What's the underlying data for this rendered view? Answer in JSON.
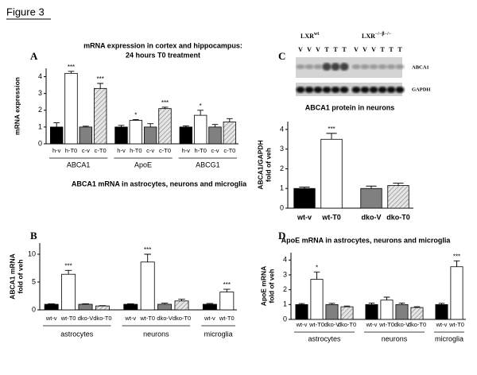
{
  "figure_title": "Figure 3",
  "blot": {
    "groups": [
      {
        "label": "LXR",
        "superscript": "wt"
      },
      {
        "label": "LXR",
        "superscript": "−/−β−/−"
      }
    ],
    "lanes": [
      "V",
      "V",
      "V",
      "T",
      "T",
      "T",
      "V",
      "V",
      "V",
      "T",
      "T",
      "T"
    ],
    "bands": [
      "ABCA1",
      "GAPDH"
    ]
  },
  "chart_data": [
    {
      "type": "bar",
      "panel": "A",
      "title": "mRNA expression in cortex and hippocampus:",
      "subtitle": "24 hours T0 treatment",
      "ylabel": [
        "mRNA expression"
      ],
      "categories": [
        "h-v",
        "h-T0",
        "c-v",
        "c-T0",
        "h-v",
        "h-T0",
        "c-v",
        "c-T0",
        "h-v",
        "h-T0",
        "c-v",
        "c-T0"
      ],
      "groups": [
        "ABCA1",
        "ApoE",
        "ABCG1"
      ],
      "values": [
        1,
        4.2,
        1,
        3.3,
        1,
        1.4,
        1,
        2.1,
        1,
        1.7,
        1,
        1.3
      ],
      "errors": [
        0.25,
        0.12,
        0.05,
        0.3,
        0.1,
        0.05,
        0.2,
        0.08,
        0.07,
        0.3,
        0.15,
        0.2
      ],
      "annotations": [
        null,
        "***",
        null,
        "***",
        null,
        "*",
        null,
        "***",
        null,
        "*",
        null,
        null
      ],
      "colors": [
        "#000000",
        "#ffffff",
        "#808080",
        "#d9d9d9",
        "#000000",
        "#ffffff",
        "#808080",
        "#d9d9d9",
        "#000000",
        "#ffffff",
        "#808080",
        "#d9d9d9"
      ],
      "hatch": [
        false,
        false,
        false,
        true,
        false,
        false,
        false,
        true,
        false,
        false,
        false,
        true
      ],
      "ylim": [
        0,
        4.5
      ],
      "yticks": [
        0,
        1,
        2,
        3,
        4
      ]
    },
    {
      "type": "bar",
      "panel": "B",
      "title": "ABCA1 mRNA in astrocytes, neurons and microglia",
      "ylabel": [
        "ABCA1 mRNA",
        "fold of veh"
      ],
      "categories": [
        "wt-v",
        "wt-T0",
        "dko-V",
        "dko-T0",
        "wt-v",
        "wt-T0",
        "dko-V",
        "dko-T0",
        "wt-v",
        "wt-T0"
      ],
      "groups": [
        "astrocytes",
        "neurons",
        "microglia"
      ],
      "values": [
        1,
        6.4,
        1,
        0.7,
        1,
        8.6,
        1,
        1.6,
        1,
        3.2
      ],
      "errors": [
        0.1,
        0.7,
        0.1,
        0.05,
        0.1,
        1.4,
        0.2,
        0.3,
        0.15,
        0.5
      ],
      "annotations": [
        null,
        "***",
        null,
        null,
        null,
        "***",
        null,
        null,
        null,
        "***"
      ],
      "colors": [
        "#000000",
        "#ffffff",
        "#808080",
        "#d9d9d9",
        "#000000",
        "#ffffff",
        "#808080",
        "#d9d9d9",
        "#000000",
        "#ffffff"
      ],
      "hatch": [
        false,
        false,
        false,
        true,
        false,
        false,
        false,
        true,
        false,
        false
      ],
      "ylim": [
        0,
        12
      ],
      "yticks": [
        0,
        5,
        10
      ]
    },
    {
      "type": "bar",
      "panel": "C",
      "title": "ABCA1 protein in neurons",
      "ylabel": [
        "ABCA1/GAPDH",
        "fold of veh"
      ],
      "categories": [
        "wt-v",
        "wt-T0",
        "dko-V",
        "dko-T0"
      ],
      "values": [
        1,
        3.5,
        1,
        1.15
      ],
      "errors": [
        0.07,
        0.3,
        0.12,
        0.12
      ],
      "annotations": [
        null,
        "***",
        null,
        null
      ],
      "colors": [
        "#000000",
        "#ffffff",
        "#808080",
        "#d9d9d9"
      ],
      "hatch": [
        false,
        false,
        false,
        true
      ],
      "ylim": [
        0,
        4.4
      ],
      "yticks": [
        0,
        1,
        2,
        3,
        4
      ]
    },
    {
      "type": "bar",
      "panel": "D",
      "title": "ApoE mRNA in astrocytes, neurons and microglia",
      "ylabel": [
        "ApoE mRNA",
        "fold of veh"
      ],
      "categories": [
        "wt-v",
        "wt-T0",
        "dko-V",
        "dko-T0",
        "wt-v",
        "wt-T0",
        "dko-V",
        "dko-T0",
        "wt-v",
        "wt-T0"
      ],
      "groups": [
        "astrocytes",
        "neurons",
        "microglia"
      ],
      "values": [
        1,
        2.7,
        1,
        0.85,
        1,
        1.3,
        1,
        0.8,
        1,
        3.55
      ],
      "errors": [
        0.07,
        0.5,
        0.08,
        0.05,
        0.1,
        0.2,
        0.1,
        0.05,
        0.08,
        0.4
      ],
      "annotations": [
        null,
        "*",
        null,
        null,
        null,
        null,
        null,
        null,
        null,
        "***"
      ],
      "colors": [
        "#000000",
        "#ffffff",
        "#808080",
        "#d9d9d9",
        "#000000",
        "#ffffff",
        "#808080",
        "#d9d9d9",
        "#000000",
        "#ffffff"
      ],
      "hatch": [
        false,
        false,
        false,
        true,
        false,
        false,
        false,
        true,
        false,
        false
      ],
      "ylim": [
        0,
        4.5
      ],
      "yticks": [
        0,
        1,
        2,
        3,
        4
      ]
    }
  ]
}
